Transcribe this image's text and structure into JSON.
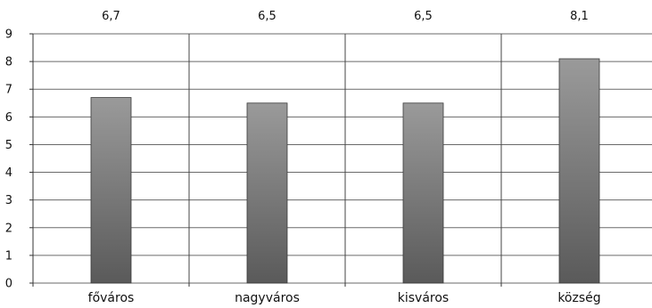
{
  "chart_data": {
    "type": "bar",
    "categories": [
      "főváros",
      "nagyváros",
      "kisváros",
      "község"
    ],
    "values": [
      6.7,
      6.5,
      6.5,
      8.1
    ],
    "value_labels": [
      "6,7",
      "6,5",
      "6,5",
      "8,1"
    ],
    "title": "",
    "xlabel": "",
    "ylabel": "",
    "ylim": [
      0,
      9
    ],
    "yticks": [
      0,
      1,
      2,
      3,
      4,
      5,
      6,
      7,
      8,
      9
    ],
    "grid": "horizontal",
    "category_separators": true,
    "legend": "none",
    "value_labels_position": "top",
    "bar_gradient": [
      "#9a9a9a",
      "#5a5a5a"
    ]
  }
}
